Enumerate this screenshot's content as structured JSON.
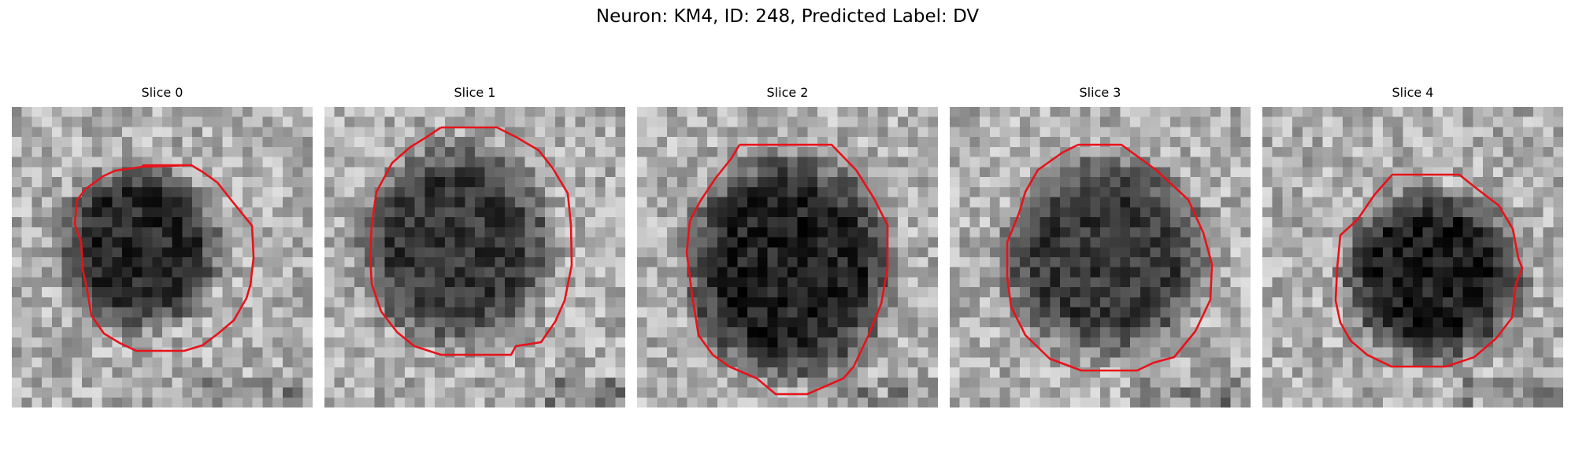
{
  "figure": {
    "suptitle": "Neuron: KM4, ID: 248, Predicted Label: DV"
  },
  "contour_color": "#e8121a",
  "panels": [
    {
      "title": "Slice 0"
    },
    {
      "title": "Slice 1"
    },
    {
      "title": "Slice 2"
    },
    {
      "title": "Slice 3"
    },
    {
      "title": "Slice 4"
    }
  ]
}
